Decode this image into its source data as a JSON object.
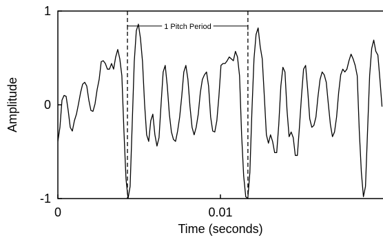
{
  "chart_data": {
    "type": "line",
    "xlabel": "Time (seconds)",
    "ylabel": "Amplitude",
    "xlim": [
      0,
      0.02
    ],
    "ylim": [
      -1,
      1
    ],
    "xticks": [
      0,
      0.01
    ],
    "yticks": [
      -1,
      0,
      1
    ],
    "annotation": {
      "text": "1 Pitch Period",
      "x": [
        0.00428,
        0.01169
      ],
      "y": 0.84
    },
    "series": [
      {
        "color": "#000000",
        "x": [
          0,
          0.000127,
          0.000254,
          0.000381,
          0.000508,
          0.000635,
          0.000762,
          0.000889,
          0.001016,
          0.001143,
          0.00127,
          0.001397,
          0.001524,
          0.001651,
          0.001778,
          0.001905,
          0.002032,
          0.002159,
          0.002286,
          0.002413,
          0.00254,
          0.002667,
          0.002794,
          0.002921,
          0.003048,
          0.003175,
          0.003302,
          0.003429,
          0.003556,
          0.003683,
          0.00381,
          0.003937,
          0.004064,
          0.004191,
          0.004318,
          0.004445,
          0.004572,
          0.004699,
          0.004826,
          0.004953,
          0.00508,
          0.005207,
          0.005334,
          0.005461,
          0.005588,
          0.005715,
          0.005842,
          0.005969,
          0.006096,
          0.006223,
          0.00635,
          0.006477,
          0.006604,
          0.006731,
          0.006858,
          0.006985,
          0.007112,
          0.007239,
          0.007366,
          0.007493,
          0.00762,
          0.007747,
          0.007874,
          0.008001,
          0.008128,
          0.008255,
          0.008382,
          0.008509,
          0.008636,
          0.008763,
          0.00889,
          0.009017,
          0.009144,
          0.009271,
          0.009398,
          0.009525,
          0.009652,
          0.009779,
          0.009906,
          0.010033,
          0.01016,
          0.010287,
          0.010414,
          0.010541,
          0.010668,
          0.010795,
          0.010922,
          0.011049,
          0.011176,
          0.011303,
          0.01143,
          0.011557,
          0.011684,
          0.011811,
          0.011938,
          0.012065,
          0.012192,
          0.012319,
          0.012446,
          0.012573,
          0.0127,
          0.012827,
          0.012954,
          0.013081,
          0.013208,
          0.013335,
          0.013462,
          0.013589,
          0.013716,
          0.013843,
          0.01397,
          0.014097,
          0.014224,
          0.014351,
          0.014478,
          0.014605,
          0.014732,
          0.014859,
          0.014986,
          0.015113,
          0.01524,
          0.015367,
          0.015494,
          0.015621,
          0.015748,
          0.015875,
          0.016002,
          0.016129,
          0.016256,
          0.016383,
          0.01651,
          0.016637,
          0.016764,
          0.016891,
          0.017018,
          0.017145,
          0.017272,
          0.017399,
          0.017526,
          0.017653,
          0.01778,
          0.017907,
          0.018034,
          0.018161,
          0.018288,
          0.018415,
          0.018542,
          0.018669,
          0.018796,
          0.018923,
          0.01905,
          0.019177,
          0.019304,
          0.019431,
          0.019558,
          0.019685,
          0.019812,
          0.019939
        ],
        "values": [
          -0.39,
          -0.24,
          0.05,
          0.1,
          0.09,
          -0.06,
          -0.24,
          -0.28,
          -0.17,
          -0.1,
          0.01,
          0.13,
          0.22,
          0.24,
          0.2,
          0.05,
          -0.06,
          -0.07,
          0.01,
          0.16,
          0.27,
          0.46,
          0.47,
          0.44,
          0.38,
          0.38,
          0.44,
          0.38,
          0.51,
          0.59,
          0.49,
          0.31,
          -0.28,
          -0.79,
          -1,
          -0.87,
          -0.21,
          0.46,
          0.79,
          0.86,
          0.71,
          0.46,
          0.01,
          -0.32,
          -0.39,
          -0.17,
          -0.1,
          -0.32,
          -0.44,
          -0.35,
          0.01,
          0.35,
          0.42,
          0.2,
          -0.1,
          -0.29,
          -0.37,
          -0.39,
          -0.28,
          -0.13,
          0.09,
          0.35,
          0.42,
          0.27,
          -0.02,
          -0.24,
          -0.32,
          -0.24,
          -0.1,
          0.13,
          0.27,
          0.32,
          0.35,
          0.2,
          -0.13,
          -0.28,
          -0.29,
          -0.17,
          0.09,
          0.42,
          0.44,
          0.44,
          0.47,
          0.51,
          0.49,
          0.47,
          0.57,
          0.51,
          0.31,
          -0.32,
          -0.76,
          -0.98,
          -1,
          -0.72,
          -0.06,
          0.49,
          0.75,
          0.82,
          0.62,
          0.49,
          0.09,
          -0.32,
          -0.41,
          -0.32,
          -0.39,
          -0.51,
          -0.51,
          -0.21,
          0.2,
          0.4,
          0.35,
          -0.06,
          -0.34,
          -0.29,
          -0.35,
          -0.54,
          -0.54,
          -0.24,
          0.09,
          0.38,
          0.42,
          0.16,
          -0.15,
          -0.24,
          -0.22,
          -0.13,
          0.09,
          0.27,
          0.35,
          0.32,
          0.24,
          0.01,
          -0.21,
          -0.34,
          -0.29,
          -0.13,
          0.13,
          0.32,
          0.38,
          0.35,
          0.38,
          0.47,
          0.54,
          0.49,
          0.42,
          0.31,
          -0.28,
          -0.72,
          -0.98,
          -0.87,
          -0.28,
          0.31,
          0.6,
          0.69,
          0.57,
          0.53,
          0.27,
          -0.02
        ]
      }
    ]
  }
}
